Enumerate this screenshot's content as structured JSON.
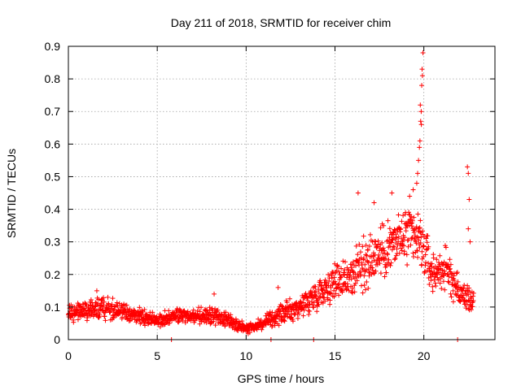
{
  "chart_data": {
    "type": "scatter",
    "title": "Day 211 of 2018, SRMTID for receiver chim",
    "xlabel": "GPS time / hours",
    "ylabel": "SRMTID / TECUs",
    "xlim": [
      0,
      24
    ],
    "ylim": [
      0,
      0.9
    ],
    "xticks": [
      0,
      5,
      10,
      15,
      20
    ],
    "xtick_labels": [
      "0",
      "5",
      "10",
      "15",
      "20"
    ],
    "yticks": [
      0,
      0.1,
      0.2,
      0.3,
      0.4,
      0.5,
      0.6,
      0.7,
      0.8,
      0.9
    ],
    "ytick_labels": [
      "0",
      "0.1",
      "0.2",
      "0.3",
      "0.4",
      "0.5",
      "0.6",
      "0.7",
      "0.8",
      "0.9"
    ],
    "grid": true,
    "marker": "+",
    "color": "#ff0000",
    "trend": [
      {
        "x": 0.0,
        "y": 0.08,
        "spread": 0.03
      },
      {
        "x": 1.0,
        "y": 0.09,
        "spread": 0.035
      },
      {
        "x": 2.0,
        "y": 0.1,
        "spread": 0.035
      },
      {
        "x": 3.0,
        "y": 0.085,
        "spread": 0.03
      },
      {
        "x": 4.0,
        "y": 0.07,
        "spread": 0.025
      },
      {
        "x": 5.0,
        "y": 0.06,
        "spread": 0.025
      },
      {
        "x": 6.0,
        "y": 0.075,
        "spread": 0.025
      },
      {
        "x": 7.0,
        "y": 0.07,
        "spread": 0.025
      },
      {
        "x": 8.0,
        "y": 0.075,
        "spread": 0.03
      },
      {
        "x": 9.0,
        "y": 0.06,
        "spread": 0.025
      },
      {
        "x": 10.0,
        "y": 0.035,
        "spread": 0.015
      },
      {
        "x": 11.0,
        "y": 0.05,
        "spread": 0.02
      },
      {
        "x": 12.0,
        "y": 0.08,
        "spread": 0.03
      },
      {
        "x": 13.0,
        "y": 0.1,
        "spread": 0.04
      },
      {
        "x": 14.0,
        "y": 0.14,
        "spread": 0.05
      },
      {
        "x": 15.0,
        "y": 0.18,
        "spread": 0.06
      },
      {
        "x": 16.0,
        "y": 0.2,
        "spread": 0.08
      },
      {
        "x": 17.0,
        "y": 0.25,
        "spread": 0.09
      },
      {
        "x": 18.0,
        "y": 0.28,
        "spread": 0.1
      },
      {
        "x": 19.0,
        "y": 0.32,
        "spread": 0.1
      },
      {
        "x": 19.8,
        "y": 0.3,
        "spread": 0.1
      },
      {
        "x": 20.5,
        "y": 0.2,
        "spread": 0.07
      },
      {
        "x": 21.0,
        "y": 0.22,
        "spread": 0.07
      },
      {
        "x": 21.5,
        "y": 0.2,
        "spread": 0.07
      },
      {
        "x": 22.0,
        "y": 0.14,
        "spread": 0.05
      },
      {
        "x": 22.8,
        "y": 0.12,
        "spread": 0.04
      }
    ],
    "scatter_points": 1500,
    "outliers": [
      {
        "x": 19.95,
        "y": 0.88
      },
      {
        "x": 19.9,
        "y": 0.83
      },
      {
        "x": 19.92,
        "y": 0.81
      },
      {
        "x": 19.88,
        "y": 0.78
      },
      {
        "x": 19.8,
        "y": 0.72
      },
      {
        "x": 19.85,
        "y": 0.7
      },
      {
        "x": 19.82,
        "y": 0.67
      },
      {
        "x": 19.86,
        "y": 0.66
      },
      {
        "x": 19.78,
        "y": 0.61
      },
      {
        "x": 19.75,
        "y": 0.59
      },
      {
        "x": 19.7,
        "y": 0.55
      },
      {
        "x": 19.65,
        "y": 0.51
      },
      {
        "x": 19.6,
        "y": 0.48
      },
      {
        "x": 19.4,
        "y": 0.46
      },
      {
        "x": 19.2,
        "y": 0.44
      },
      {
        "x": 22.45,
        "y": 0.53
      },
      {
        "x": 22.5,
        "y": 0.51
      },
      {
        "x": 22.55,
        "y": 0.43
      },
      {
        "x": 22.5,
        "y": 0.34
      },
      {
        "x": 22.6,
        "y": 0.3
      },
      {
        "x": 16.3,
        "y": 0.45
      },
      {
        "x": 17.2,
        "y": 0.42
      },
      {
        "x": 18.2,
        "y": 0.45
      },
      {
        "x": 8.2,
        "y": 0.14
      },
      {
        "x": 1.6,
        "y": 0.15
      },
      {
        "x": 11.8,
        "y": 0.16
      },
      {
        "x": 5.8,
        "y": 0.0
      },
      {
        "x": 11.4,
        "y": 0.0
      },
      {
        "x": 13.8,
        "y": 0.0
      },
      {
        "x": 21.9,
        "y": 0.0
      }
    ]
  }
}
